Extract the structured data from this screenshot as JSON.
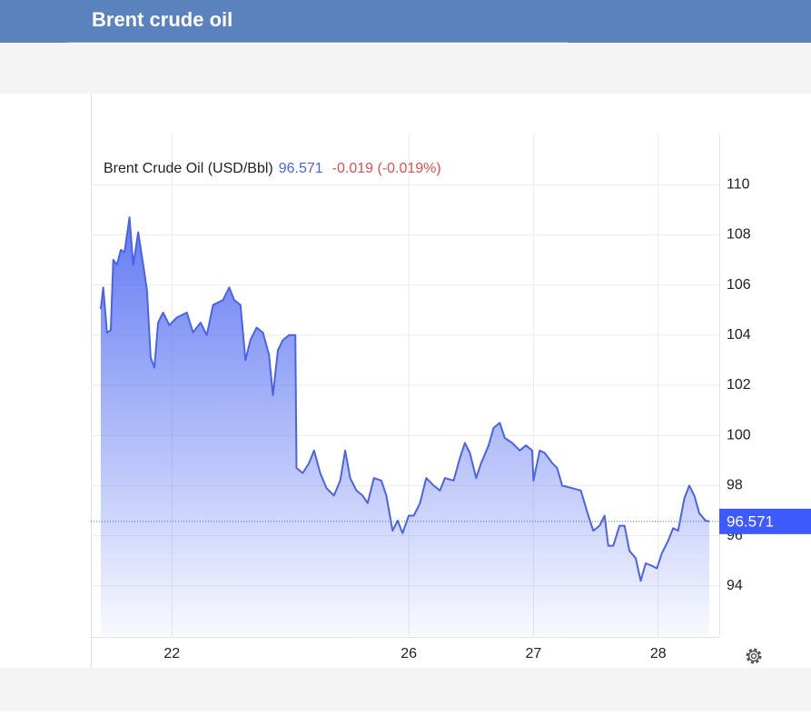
{
  "header": {
    "title": "Brent crude oil"
  },
  "chart_data": {
    "type": "line",
    "series": [
      {
        "name": "Brent Crude Oil (USD/Bbl)",
        "color": "#4a63e8",
        "x": [
          -5.7,
          -5.5,
          -5.2,
          -4.9,
          -4.7,
          -4.4,
          -4.1,
          -3.8,
          -3.4,
          -3.1,
          -2.7,
          -2.3,
          -2.0,
          -1.7,
          -1.4,
          -1.1,
          -0.7,
          -0.2,
          0.4,
          1.2,
          1.7,
          2.3,
          2.8,
          3.3,
          4.1,
          4.6,
          5.0,
          5.5,
          5.9,
          6.3,
          6.8,
          7.3,
          7.8,
          8.1,
          8.5,
          8.9,
          9.4,
          9.9,
          10.0,
          10.5,
          11.0,
          11.4,
          11.9,
          12.4,
          13.0,
          13.5,
          13.9,
          14.3,
          14.8,
          15.3,
          15.7,
          16.2,
          16.8,
          17.2,
          17.7,
          18.1,
          18.5,
          19.0,
          19.4,
          19.9,
          20.4,
          21.0,
          21.5,
          21.9,
          22.6,
          23.1,
          23.5,
          23.9,
          24.4,
          24.8,
          25.4,
          25.8,
          26.3,
          26.7,
          27.3,
          27.9,
          28.4,
          28.9,
          29.0,
          29.5,
          29.9,
          30.5,
          30.9,
          31.3,
          32.1,
          32.8,
          33.4,
          33.8,
          34.3,
          34.7,
          35.0,
          35.4,
          35.9,
          36.3,
          36.7,
          37.2,
          37.6,
          38.0,
          38.5,
          38.9,
          39.3,
          39.8,
          40.2,
          40.6,
          41.1,
          41.5,
          41.9,
          42.3,
          42.8,
          43.1
        ],
        "values": [
          105.04,
          105.9,
          104.1,
          104.2,
          107.0,
          106.8,
          107.4,
          107.3,
          108.7,
          106.8,
          108.1,
          106.8,
          105.8,
          103.1,
          102.7,
          104.5,
          104.9,
          104.4,
          104.7,
          104.9,
          104.1,
          104.5,
          104.0,
          105.2,
          105.4,
          105.9,
          105.4,
          105.2,
          103.0,
          103.8,
          104.3,
          104.1,
          103.2,
          101.6,
          103.4,
          103.8,
          104.0,
          104.0,
          98.7,
          98.5,
          98.9,
          99.4,
          98.5,
          97.9,
          97.6,
          98.2,
          99.4,
          98.3,
          97.8,
          97.6,
          97.3,
          98.3,
          98.2,
          97.6,
          96.2,
          96.6,
          96.1,
          96.8,
          96.8,
          97.3,
          98.3,
          98.0,
          97.8,
          98.3,
          98.2,
          99.1,
          99.7,
          99.3,
          98.3,
          98.9,
          99.6,
          100.3,
          100.5,
          99.9,
          99.7,
          99.4,
          99.6,
          99.4,
          98.2,
          99.4,
          99.3,
          98.9,
          98.7,
          98.0,
          97.9,
          97.8,
          96.8,
          96.2,
          96.4,
          96.8,
          95.6,
          95.6,
          96.4,
          96.4,
          95.4,
          95.1,
          94.2,
          94.9,
          94.8,
          94.7,
          95.3,
          95.8,
          96.3,
          96.2,
          97.5,
          98.0,
          97.6,
          96.9,
          96.6,
          96.571
        ]
      }
    ],
    "last_value": 96.571,
    "change_label": "-0.019 (-0.019%)",
    "xlim": [
      -6.5,
      43.9
    ],
    "xticks": [
      {
        "value": 0,
        "label": "22"
      },
      {
        "value": 19,
        "label": "26"
      },
      {
        "value": 29,
        "label": "27"
      },
      {
        "value": 39,
        "label": "28"
      }
    ],
    "ylim": [
      92,
      112
    ],
    "yticks": [
      94,
      96,
      98,
      100,
      102,
      104,
      106,
      108,
      110
    ],
    "grid": true
  }
}
